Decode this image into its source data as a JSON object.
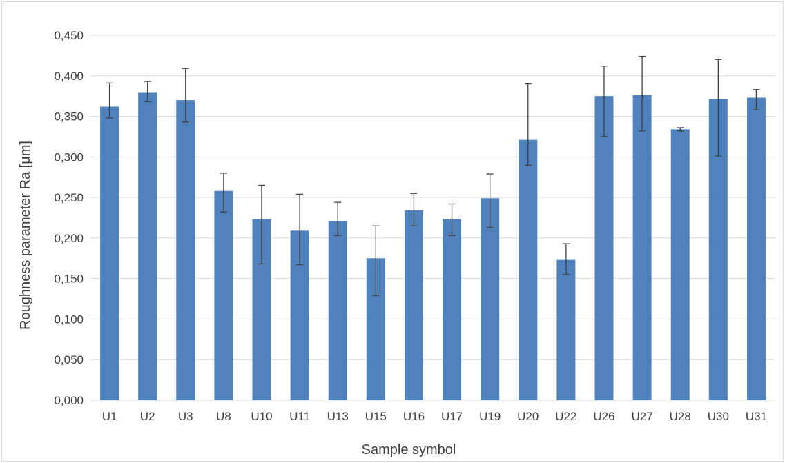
{
  "chart_data": {
    "type": "bar",
    "title": "",
    "xlabel": "Sample symbol",
    "ylabel": "Roughness parameter Ra [µm]",
    "ylim": [
      0,
      0.45
    ],
    "y_ticks": [
      "0,000",
      "0,050",
      "0,100",
      "0,150",
      "0,200",
      "0,250",
      "0,300",
      "0,350",
      "0,400",
      "0,450"
    ],
    "y_tick_values": [
      0,
      0.05,
      0.1,
      0.15,
      0.2,
      0.25,
      0.3,
      0.35,
      0.4,
      0.45
    ],
    "grid": true,
    "legend": "none",
    "bar_color": "#4f81bd",
    "error_color": "#404040",
    "categories": [
      "U1",
      "U2",
      "U3",
      "U8",
      "U10",
      "U11",
      "U13",
      "U15",
      "U16",
      "U17",
      "U19",
      "U20",
      "U22",
      "U26",
      "U27",
      "U28",
      "U30",
      "U31"
    ],
    "values": [
      0.362,
      0.379,
      0.37,
      0.258,
      0.223,
      0.209,
      0.221,
      0.175,
      0.234,
      0.223,
      0.249,
      0.321,
      0.173,
      0.375,
      0.376,
      0.334,
      0.371,
      0.373
    ],
    "error_high": [
      0.391,
      0.393,
      0.409,
      0.28,
      0.265,
      0.254,
      0.244,
      0.215,
      0.255,
      0.242,
      0.279,
      0.39,
      0.193,
      0.412,
      0.424,
      0.336,
      0.42,
      0.383
    ],
    "error_low": [
      0.348,
      0.368,
      0.343,
      0.232,
      0.168,
      0.167,
      0.203,
      0.129,
      0.215,
      0.203,
      0.213,
      0.29,
      0.155,
      0.325,
      0.332,
      0.332,
      0.301,
      0.358
    ]
  }
}
